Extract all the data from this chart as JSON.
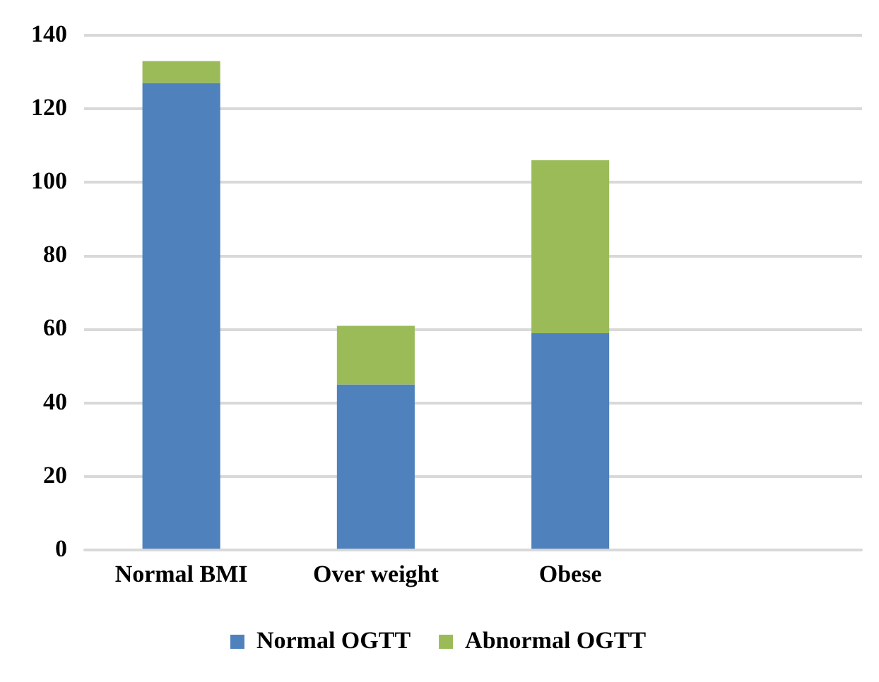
{
  "chart_data": {
    "type": "bar",
    "stacked": true,
    "categories": [
      "Normal BMI",
      "Over weight",
      "Obese",
      null
    ],
    "series": [
      {
        "name": "Normal OGTT",
        "color": "#4f81bd",
        "values": [
          127,
          45,
          59,
          null
        ]
      },
      {
        "name": "Abnormal OGTT",
        "color": "#9bbb59",
        "values": [
          6,
          16,
          47,
          null
        ]
      }
    ],
    "ylim": [
      0,
      140
    ],
    "yticks": [
      0,
      20,
      40,
      60,
      80,
      100,
      120,
      140
    ],
    "grid": "y",
    "legend": "bottom"
  }
}
